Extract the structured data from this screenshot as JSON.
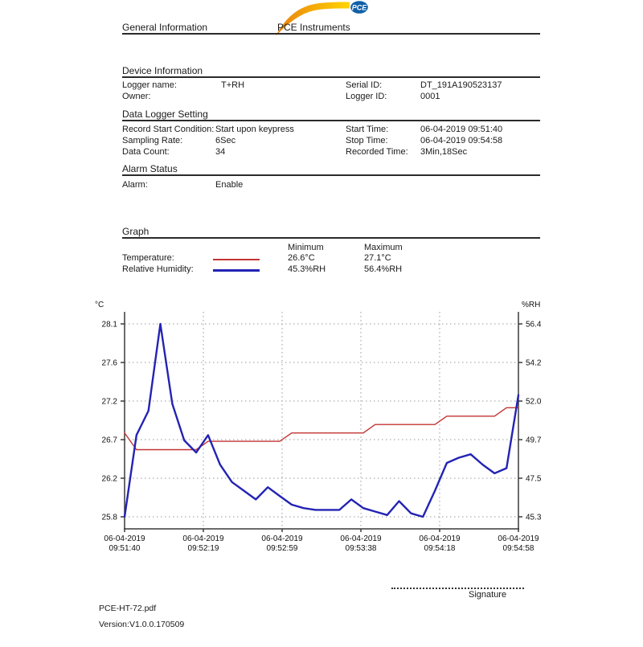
{
  "header": {
    "left_title": "General Information",
    "brand": "PCE Instruments",
    "logo_text": "PCE",
    "logo_colors": {
      "swoosh_left": "#e87f10",
      "swoosh_right": "#ffd400",
      "badge": "#1060a8"
    }
  },
  "sections": {
    "device": {
      "title": "Device Information",
      "rows": [
        {
          "label": "Logger name:",
          "value": "T+RH",
          "label2": "Serial ID:",
          "value2": "DT_191A190523137"
        },
        {
          "label": "Owner:",
          "value": "",
          "label2": "Logger ID:",
          "value2": "0001"
        }
      ]
    },
    "settings": {
      "title": "Data Logger Setting",
      "rows": [
        {
          "label": "Record Start Condition:",
          "value": "Start upon keypress",
          "label2": "Start Time:",
          "value2": "06-04-2019 09:51:40"
        },
        {
          "label": "Sampling Rate:",
          "value": "6Sec",
          "label2": "Stop Time:",
          "value2": "06-04-2019 09:54:58"
        },
        {
          "label": "Data Count:",
          "value": "34",
          "label2": "Recorded Time:",
          "value2": "3Min,18Sec"
        }
      ]
    },
    "alarm": {
      "title": "Alarm Status",
      "rows": [
        {
          "label": "Alarm:",
          "value": "Enable"
        }
      ]
    },
    "graph": {
      "title": "Graph",
      "legend": {
        "min_header": "Minimum",
        "max_header": "Maximum",
        "series": [
          {
            "label": "Temperature:",
            "color": "#c33432",
            "min": "26.6°C",
            "max": "27.1°C"
          },
          {
            "label": "Relative Humidity:",
            "color": "#2323b4",
            "min": "45.3%RH",
            "max": "56.4%RH"
          }
        ]
      }
    }
  },
  "chart_data": {
    "type": "line",
    "title": "",
    "grid": true,
    "legend_position": "above",
    "left_axis": {
      "label": "°C",
      "min": 25.8,
      "max": 28.1,
      "ticks": [
        "28.1",
        "27.6",
        "27.2",
        "26.7",
        "26.2",
        "25.8"
      ]
    },
    "right_axis": {
      "label": "%RH",
      "min": 45.3,
      "max": 56.4,
      "ticks": [
        "56.4",
        "54.2",
        "52.0",
        "49.7",
        "47.5",
        "45.3"
      ]
    },
    "x_ticks": [
      [
        "06-04-2019",
        "09:51:40"
      ],
      [
        "06-04-2019",
        "09:52:19"
      ],
      [
        "06-04-2019",
        "09:52:59"
      ],
      [
        "06-04-2019",
        "09:53:38"
      ],
      [
        "06-04-2019",
        "09:54:18"
      ],
      [
        "06-04-2019",
        "09:54:58"
      ]
    ],
    "series": [
      {
        "name": "Temperature",
        "axis": "left",
        "color": "#c33432",
        "width": 1.4,
        "values": [
          26.8,
          26.6,
          26.6,
          26.6,
          26.6,
          26.6,
          26.6,
          26.7,
          26.7,
          26.7,
          26.7,
          26.7,
          26.7,
          26.7,
          26.8,
          26.8,
          26.8,
          26.8,
          26.8,
          26.8,
          26.8,
          26.9,
          26.9,
          26.9,
          26.9,
          26.9,
          26.9,
          27.0,
          27.0,
          27.0,
          27.0,
          27.0,
          27.1,
          27.1
        ]
      },
      {
        "name": "Relative Humidity",
        "axis": "right",
        "color": "#2323b4",
        "width": 2.4,
        "values": [
          45.3,
          50.0,
          51.4,
          56.4,
          51.8,
          49.7,
          49.0,
          50.0,
          48.3,
          47.3,
          46.8,
          46.3,
          47.0,
          46.5,
          46.0,
          45.8,
          45.7,
          45.7,
          45.7,
          46.3,
          45.8,
          45.6,
          45.4,
          46.2,
          45.5,
          45.3,
          46.8,
          48.4,
          48.7,
          48.9,
          48.3,
          47.8,
          48.1,
          52.3
        ]
      }
    ]
  },
  "signature": {
    "label": "Signature"
  },
  "footer": {
    "filename": "PCE-HT-72.pdf",
    "version": "Version:V1.0.0.170509"
  }
}
